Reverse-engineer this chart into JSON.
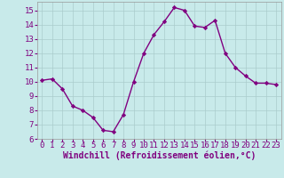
{
  "x": [
    0,
    1,
    2,
    3,
    4,
    5,
    6,
    7,
    8,
    9,
    10,
    11,
    12,
    13,
    14,
    15,
    16,
    17,
    18,
    19,
    20,
    21,
    22,
    23
  ],
  "y": [
    10.1,
    10.2,
    9.5,
    8.3,
    8.0,
    7.5,
    6.6,
    6.5,
    7.7,
    10.0,
    12.0,
    13.3,
    14.2,
    15.2,
    15.0,
    13.9,
    13.8,
    14.3,
    12.0,
    11.0,
    10.4,
    9.9,
    9.9,
    9.8
  ],
  "line_color": "#800080",
  "marker": "D",
  "marker_size": 2.2,
  "line_width": 1.0,
  "bg_color": "#c8eaea",
  "grid_color": "#aacccc",
  "xlabel": "Windchill (Refroidissement éolien,°C)",
  "xlabel_fontsize": 7,
  "tick_fontsize": 6.5,
  "xlim": [
    -0.5,
    23.5
  ],
  "ylim": [
    6,
    15.6
  ],
  "yticks": [
    6,
    7,
    8,
    9,
    10,
    11,
    12,
    13,
    14,
    15
  ],
  "xticks": [
    0,
    1,
    2,
    3,
    4,
    5,
    6,
    7,
    8,
    9,
    10,
    11,
    12,
    13,
    14,
    15,
    16,
    17,
    18,
    19,
    20,
    21,
    22,
    23
  ],
  "line_purple": "#7f007f"
}
